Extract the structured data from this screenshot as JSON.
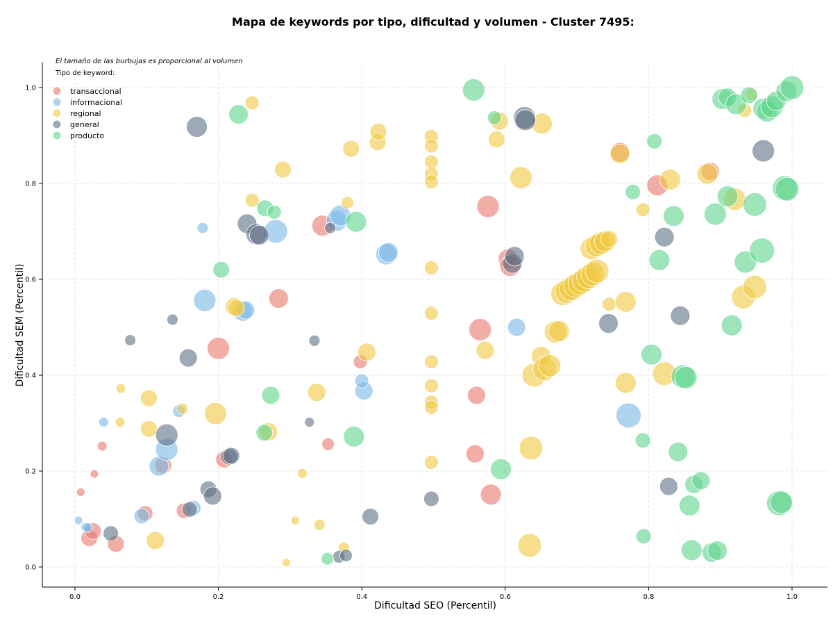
{
  "chart_data": {
    "type": "scatter",
    "title": "Mapa de keywords por tipo, dificultad y volumen - Cluster 7495:",
    "xlabel": "Dificultad SEO (Percentil)",
    "ylabel": "Dificultad SEM (Percentil)",
    "xlim": [
      -0.045,
      1.05
    ],
    "ylim": [
      -0.04,
      1.05
    ],
    "xticks": [
      "0.0",
      "0.2",
      "0.4",
      "0.6",
      "0.8",
      "1.0"
    ],
    "yticks": [
      "0.0",
      "0.2",
      "0.4",
      "0.6",
      "0.8",
      "1.0"
    ],
    "grid": true,
    "note": "El tamaño de las burbujas es proporcional al volumen",
    "legend_title": "Tipo de keyword:",
    "legend_position": "top-left",
    "series": [
      {
        "name": "transaccional",
        "color": "#e8776b",
        "points": [
          [
            0.008,
            0.156,
            6
          ],
          [
            0.027,
            0.194,
            6
          ],
          [
            0.038,
            0.252,
            7
          ],
          [
            0.02,
            0.06,
            12
          ],
          [
            0.025,
            0.075,
            12
          ],
          [
            0.057,
            0.048,
            12
          ],
          [
            0.098,
            0.112,
            11
          ],
          [
            0.152,
            0.117,
            11
          ],
          [
            0.123,
            0.212,
            12
          ],
          [
            0.2,
            0.456,
            16
          ],
          [
            0.208,
            0.224,
            12
          ],
          [
            0.284,
            0.56,
            14
          ],
          [
            0.345,
            0.712,
            15
          ],
          [
            0.353,
            0.256,
            9
          ],
          [
            0.398,
            0.428,
            10
          ],
          [
            0.565,
            0.495,
            16
          ],
          [
            0.56,
            0.358,
            13
          ],
          [
            0.558,
            0.236,
            13
          ],
          [
            0.58,
            0.151,
            15
          ],
          [
            0.576,
            0.752,
            16
          ],
          [
            0.604,
            0.643,
            14
          ],
          [
            0.607,
            0.628,
            15
          ],
          [
            0.76,
            0.865,
            14
          ],
          [
            0.812,
            0.796,
            15
          ],
          [
            0.886,
            0.825,
            13
          ]
        ]
      },
      {
        "name": "informacional",
        "color": "#7ab8e6",
        "points": [
          [
            0.005,
            0.097,
            6
          ],
          [
            0.015,
            0.083,
            7
          ],
          [
            0.018,
            0.082,
            7
          ],
          [
            0.04,
            0.302,
            7
          ],
          [
            0.093,
            0.106,
            11
          ],
          [
            0.117,
            0.21,
            14
          ],
          [
            0.128,
            0.245,
            16
          ],
          [
            0.145,
            0.325,
            9
          ],
          [
            0.165,
            0.123,
            11
          ],
          [
            0.178,
            0.707,
            8
          ],
          [
            0.181,
            0.556,
            16
          ],
          [
            0.234,
            0.533,
            14
          ],
          [
            0.238,
            0.536,
            13
          ],
          [
            0.28,
            0.7,
            17
          ],
          [
            0.365,
            0.722,
            15
          ],
          [
            0.37,
            0.733,
            15
          ],
          [
            0.403,
            0.367,
            13
          ],
          [
            0.4,
            0.388,
            10
          ],
          [
            0.434,
            0.652,
            15
          ],
          [
            0.437,
            0.656,
            14
          ],
          [
            0.616,
            0.5,
            13
          ],
          [
            0.772,
            0.316,
            18
          ]
        ]
      },
      {
        "name": "regional",
        "color": "#f0c840",
        "points": [
          [
            0.064,
            0.372,
            7
          ],
          [
            0.063,
            0.302,
            7
          ],
          [
            0.103,
            0.352,
            12
          ],
          [
            0.103,
            0.288,
            12
          ],
          [
            0.112,
            0.055,
            13
          ],
          [
            0.15,
            0.33,
            8
          ],
          [
            0.196,
            0.32,
            16
          ],
          [
            0.222,
            0.543,
            13
          ],
          [
            0.225,
            0.54,
            12
          ],
          [
            0.247,
            0.968,
            10
          ],
          [
            0.247,
            0.765,
            10
          ],
          [
            0.27,
            0.282,
            13
          ],
          [
            0.29,
            0.829,
            12
          ],
          [
            0.295,
            0.009,
            6
          ],
          [
            0.317,
            0.195,
            7
          ],
          [
            0.307,
            0.097,
            6
          ],
          [
            0.337,
            0.364,
            13
          ],
          [
            0.341,
            0.088,
            8
          ],
          [
            0.375,
            0.04,
            8
          ],
          [
            0.38,
            0.76,
            9
          ],
          [
            0.385,
            0.872,
            12
          ],
          [
            0.407,
            0.448,
            13
          ],
          [
            0.422,
            0.886,
            12
          ],
          [
            0.423,
            0.908,
            12
          ],
          [
            0.497,
            0.898,
            10
          ],
          [
            0.497,
            0.878,
            10
          ],
          [
            0.497,
            0.845,
            10
          ],
          [
            0.497,
            0.82,
            10
          ],
          [
            0.497,
            0.803,
            10
          ],
          [
            0.497,
            0.624,
            10
          ],
          [
            0.497,
            0.529,
            10
          ],
          [
            0.497,
            0.428,
            10
          ],
          [
            0.497,
            0.378,
            10
          ],
          [
            0.497,
            0.344,
            10
          ],
          [
            0.497,
            0.333,
            10
          ],
          [
            0.497,
            0.218,
            10
          ],
          [
            0.572,
            0.452,
            13
          ],
          [
            0.588,
            0.892,
            12
          ],
          [
            0.592,
            0.93,
            13
          ],
          [
            0.622,
            0.812,
            16
          ],
          [
            0.636,
            0.248,
            17
          ],
          [
            0.634,
            0.045,
            17
          ],
          [
            0.651,
            0.925,
            15
          ],
          [
            0.64,
            0.4,
            17
          ],
          [
            0.65,
            0.44,
            14
          ],
          [
            0.655,
            0.413,
            17
          ],
          [
            0.662,
            0.42,
            16
          ],
          [
            0.67,
            0.49,
            16
          ],
          [
            0.675,
            0.492,
            15
          ],
          [
            0.68,
            0.57,
            17
          ],
          [
            0.686,
            0.575,
            17
          ],
          [
            0.692,
            0.58,
            17
          ],
          [
            0.698,
            0.587,
            17
          ],
          [
            0.704,
            0.592,
            17
          ],
          [
            0.71,
            0.598,
            17
          ],
          [
            0.716,
            0.605,
            17
          ],
          [
            0.722,
            0.611,
            17
          ],
          [
            0.728,
            0.617,
            17
          ],
          [
            0.72,
            0.664,
            16
          ],
          [
            0.727,
            0.67,
            16
          ],
          [
            0.733,
            0.675,
            16
          ],
          [
            0.739,
            0.679,
            15
          ],
          [
            0.745,
            0.684,
            12
          ],
          [
            0.745,
            0.548,
            10
          ],
          [
            0.76,
            0.862,
            14
          ],
          [
            0.768,
            0.553,
            15
          ],
          [
            0.768,
            0.384,
            15
          ],
          [
            0.792,
            0.745,
            10
          ],
          [
            0.822,
            0.403,
            17
          ],
          [
            0.83,
            0.808,
            15
          ],
          [
            0.882,
            0.82,
            15
          ],
          [
            0.92,
            0.767,
            16
          ],
          [
            0.934,
            0.952,
            10
          ],
          [
            0.944,
            0.986,
            9
          ],
          [
            0.932,
            0.563,
            17
          ],
          [
            0.948,
            0.584,
            17
          ]
        ]
      },
      {
        "name": "general",
        "color": "#5c6f84",
        "points": [
          [
            0.077,
            0.473,
            8
          ],
          [
            0.05,
            0.07,
            11
          ],
          [
            0.136,
            0.516,
            8
          ],
          [
            0.128,
            0.275,
            16
          ],
          [
            0.158,
            0.436,
            13
          ],
          [
            0.16,
            0.12,
            11
          ],
          [
            0.17,
            0.918,
            15
          ],
          [
            0.186,
            0.162,
            12
          ],
          [
            0.192,
            0.148,
            13
          ],
          [
            0.215,
            0.23,
            12
          ],
          [
            0.218,
            0.232,
            12
          ],
          [
            0.24,
            0.716,
            14
          ],
          [
            0.253,
            0.694,
            15
          ],
          [
            0.257,
            0.692,
            14
          ],
          [
            0.327,
            0.302,
            7
          ],
          [
            0.334,
            0.472,
            8
          ],
          [
            0.356,
            0.707,
            8
          ],
          [
            0.368,
            0.021,
            9
          ],
          [
            0.378,
            0.024,
            9
          ],
          [
            0.412,
            0.105,
            12
          ],
          [
            0.497,
            0.142,
            11
          ],
          [
            0.61,
            0.633,
            14
          ],
          [
            0.613,
            0.648,
            14
          ],
          [
            0.627,
            0.937,
            16
          ],
          [
            0.628,
            0.932,
            15
          ],
          [
            0.744,
            0.508,
            14
          ],
          [
            0.822,
            0.688,
            14
          ],
          [
            0.828,
            0.168,
            13
          ],
          [
            0.844,
            0.524,
            14
          ],
          [
            0.96,
            0.868,
            16
          ]
        ]
      },
      {
        "name": "producto",
        "color": "#5ed48c",
        "points": [
          [
            0.228,
            0.944,
            14
          ],
          [
            0.204,
            0.62,
            12
          ],
          [
            0.264,
            0.28,
            12
          ],
          [
            0.265,
            0.748,
            12
          ],
          [
            0.278,
            0.74,
            10
          ],
          [
            0.273,
            0.358,
            13
          ],
          [
            0.352,
            0.017,
            9
          ],
          [
            0.389,
            0.272,
            15
          ],
          [
            0.392,
            0.72,
            15
          ],
          [
            0.556,
            0.995,
            16
          ],
          [
            0.585,
            0.937,
            10
          ],
          [
            0.594,
            0.204,
            15
          ],
          [
            0.778,
            0.782,
            11
          ],
          [
            0.792,
            0.264,
            11
          ],
          [
            0.793,
            0.064,
            11
          ],
          [
            0.804,
            0.443,
            15
          ],
          [
            0.808,
            0.888,
            11
          ],
          [
            0.815,
            0.64,
            15
          ],
          [
            0.835,
            0.732,
            15
          ],
          [
            0.841,
            0.24,
            14
          ],
          [
            0.848,
            0.397,
            17
          ],
          [
            0.852,
            0.395,
            16
          ],
          [
            0.857,
            0.128,
            15
          ],
          [
            0.86,
            0.035,
            15
          ],
          [
            0.863,
            0.172,
            13
          ],
          [
            0.873,
            0.18,
            13
          ],
          [
            0.888,
            0.03,
            14
          ],
          [
            0.893,
            0.736,
            16
          ],
          [
            0.896,
            0.034,
            14
          ],
          [
            0.903,
            0.976,
            15
          ],
          [
            0.91,
            0.98,
            13
          ],
          [
            0.91,
            0.773,
            15
          ],
          [
            0.916,
            0.504,
            15
          ],
          [
            0.922,
            0.965,
            15
          ],
          [
            0.935,
            0.636,
            16
          ],
          [
            0.94,
            0.984,
            12
          ],
          [
            0.948,
            0.756,
            17
          ],
          [
            0.958,
            0.66,
            18
          ],
          [
            0.96,
            0.956,
            15
          ],
          [
            0.965,
            0.95,
            15
          ],
          [
            0.972,
            0.96,
            16
          ],
          [
            0.978,
            0.972,
            14
          ],
          [
            0.982,
            0.133,
            18
          ],
          [
            0.985,
            0.135,
            16
          ],
          [
            0.99,
            0.79,
            18
          ],
          [
            0.993,
            0.788,
            17
          ],
          [
            0.992,
            0.992,
            15
          ],
          [
            1.0,
            1.0,
            17
          ]
        ]
      }
    ]
  }
}
